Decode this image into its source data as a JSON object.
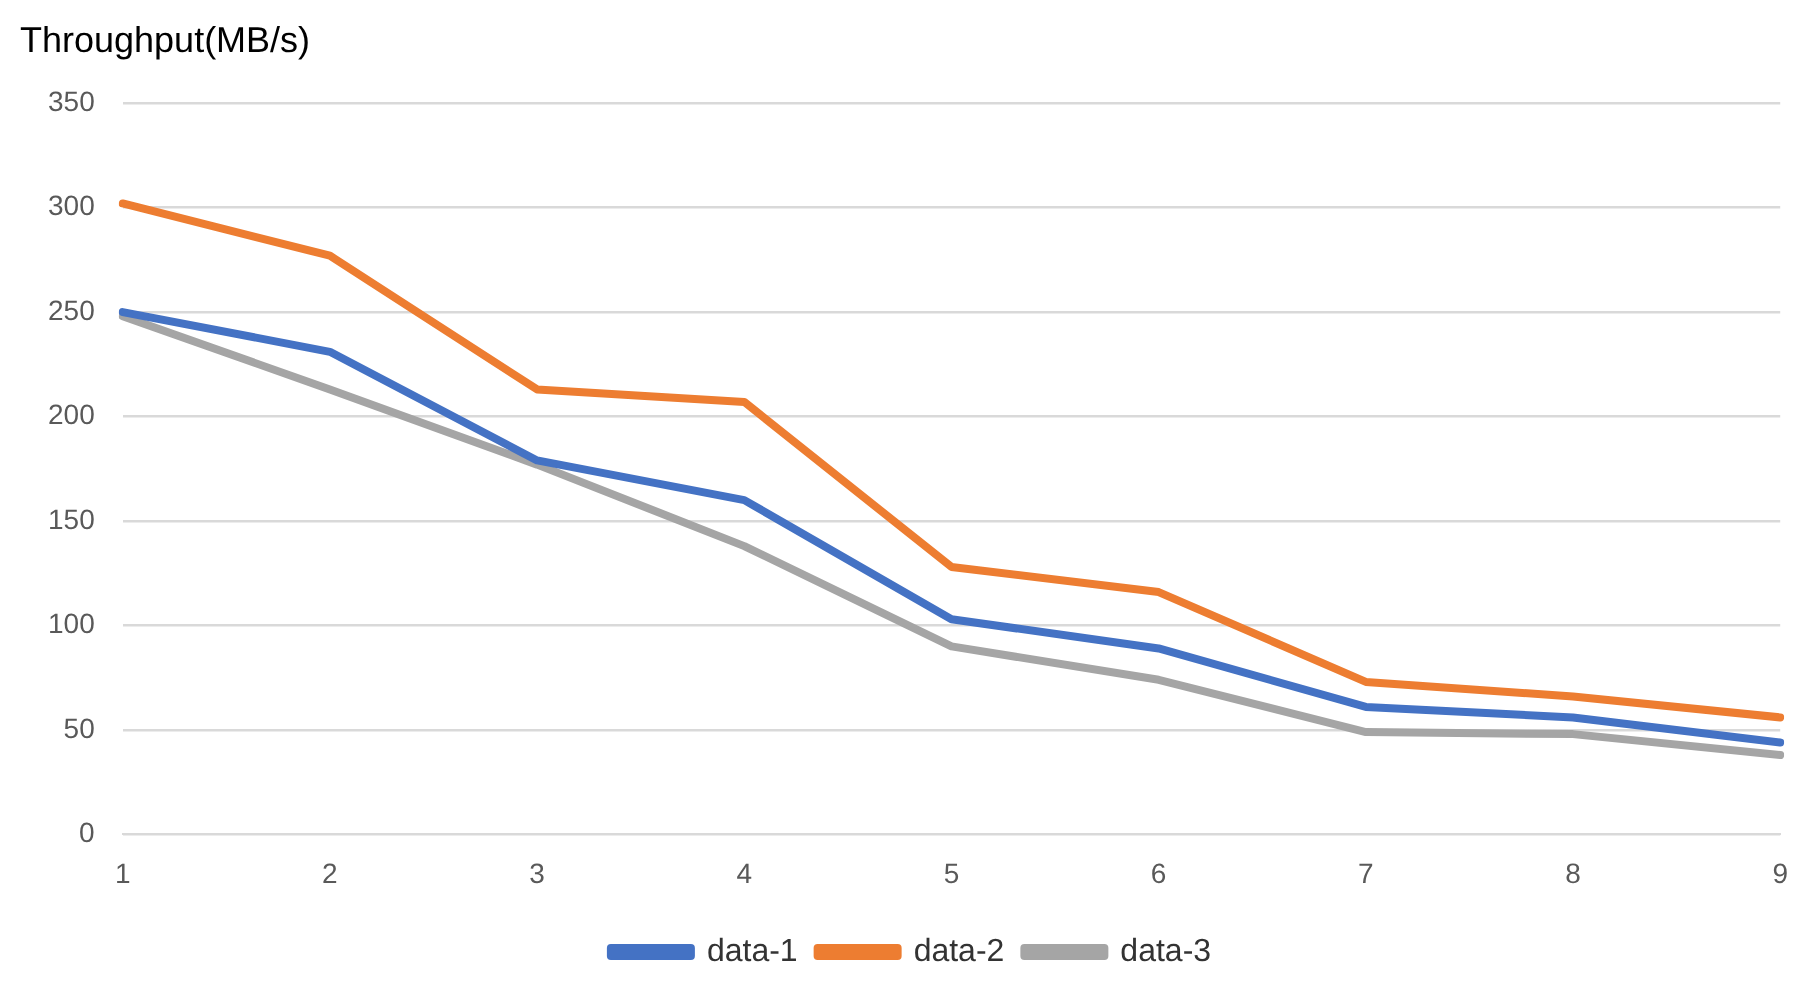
{
  "chart_data": {
    "type": "line",
    "title": "Throughput(MB/s)",
    "categories": [
      "1",
      "2",
      "3",
      "4",
      "5",
      "6",
      "7",
      "8",
      "9"
    ],
    "series": [
      {
        "name": "data-1",
        "color": "#4472c4",
        "values": [
          250,
          231,
          179,
          160,
          103,
          89,
          61,
          56,
          44
        ]
      },
      {
        "name": "data-2",
        "color": "#ed7d31",
        "values": [
          302,
          277,
          213,
          207,
          128,
          116,
          73,
          66,
          56
        ]
      },
      {
        "name": "data-3",
        "color": "#a5a5a5",
        "values": [
          248,
          213,
          177,
          138,
          90,
          74,
          49,
          48,
          38
        ]
      }
    ],
    "ylim": [
      0,
      350
    ],
    "yticks": [
      0,
      50,
      100,
      150,
      200,
      250,
      300,
      350
    ],
    "grid": "y",
    "legend": "bottom",
    "marker": "none",
    "line_style": "solid"
  }
}
